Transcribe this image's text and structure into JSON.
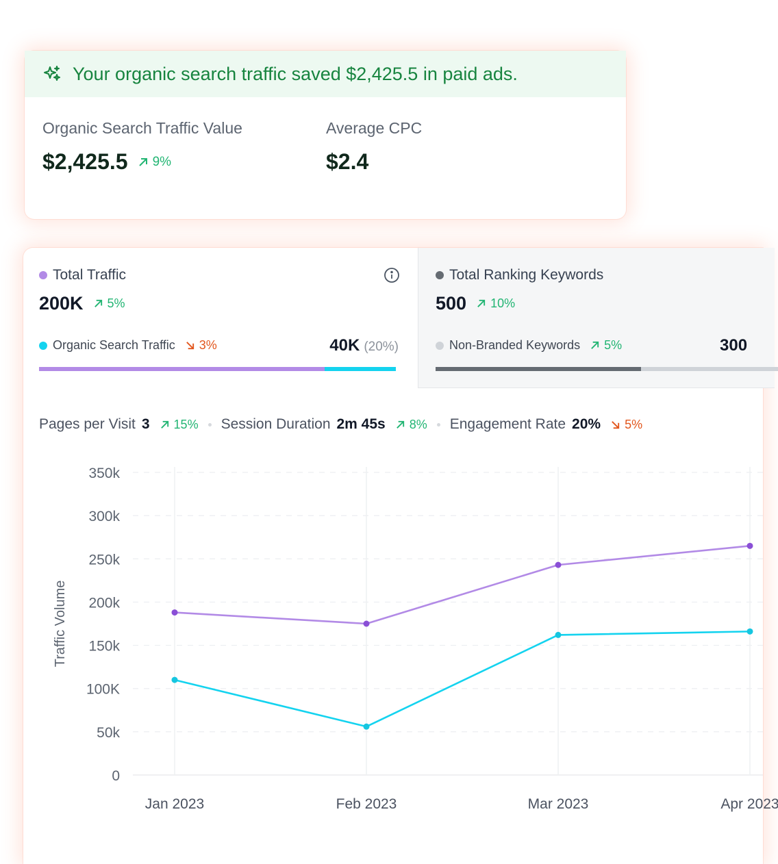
{
  "banner": {
    "text": "Your organic search traffic saved $2,425.5 in paid ads.",
    "icon": "sparkles-icon"
  },
  "traffic_value": {
    "label": "Organic Search Traffic Value",
    "value": "$2,425.5",
    "change": "9%",
    "trend": "up"
  },
  "avg_cpc": {
    "label": "Average CPC",
    "value": "$2.4"
  },
  "total_traffic": {
    "label": "Total Traffic",
    "value": "200K",
    "change": "5%",
    "trend": "up",
    "dot_color": "#b28ae6",
    "sub_label": "Organic Search Traffic",
    "sub_change": "3%",
    "sub_trend": "down",
    "sub_dot_color": "#14d3ef",
    "sub_value": "40K",
    "sub_pct": "(20%)",
    "share": 0.8
  },
  "ranking_keywords": {
    "label": "Total Ranking Keywords",
    "value": "500",
    "change": "10%",
    "trend": "up",
    "dot_color": "#656b72",
    "sub_label": "Non-Branded Keywords",
    "sub_change": "5%",
    "sub_trend": "up",
    "sub_dot_color": "#cfd3d8",
    "sub_value": "300",
    "share": 0.6
  },
  "stats": [
    {
      "label": "Pages per Visit",
      "value": "3",
      "change": "15%",
      "trend": "up"
    },
    {
      "label": "Session Duration",
      "value": "2m 45s",
      "change": "8%",
      "trend": "up"
    },
    {
      "label": "Engagement Rate",
      "value": "20%",
      "change": "5%",
      "trend": "down"
    }
  ],
  "chart_data": {
    "type": "line",
    "ylabel": "Traffic Volume",
    "xlabel": "",
    "categories": [
      "Jan 2023",
      "Feb 2023",
      "Mar 2023",
      "Apr 2023"
    ],
    "y_ticks": [
      "0",
      "50k",
      "100K",
      "150k",
      "200k",
      "250k",
      "300k",
      "350k"
    ],
    "ylim": [
      0,
      350000
    ],
    "grid": true,
    "series": [
      {
        "color": "#b28ae6",
        "point_color": "#8a4fd6",
        "values": [
          188000,
          175000,
          243000,
          265000
        ]
      },
      {
        "color": "#14d3ef",
        "point_color": "#16c6e0",
        "values": [
          110000,
          56000,
          162000,
          166000
        ]
      }
    ]
  },
  "colors": {
    "up": "#22b573",
    "down": "#e2561d",
    "banner_text": "#17843f"
  }
}
